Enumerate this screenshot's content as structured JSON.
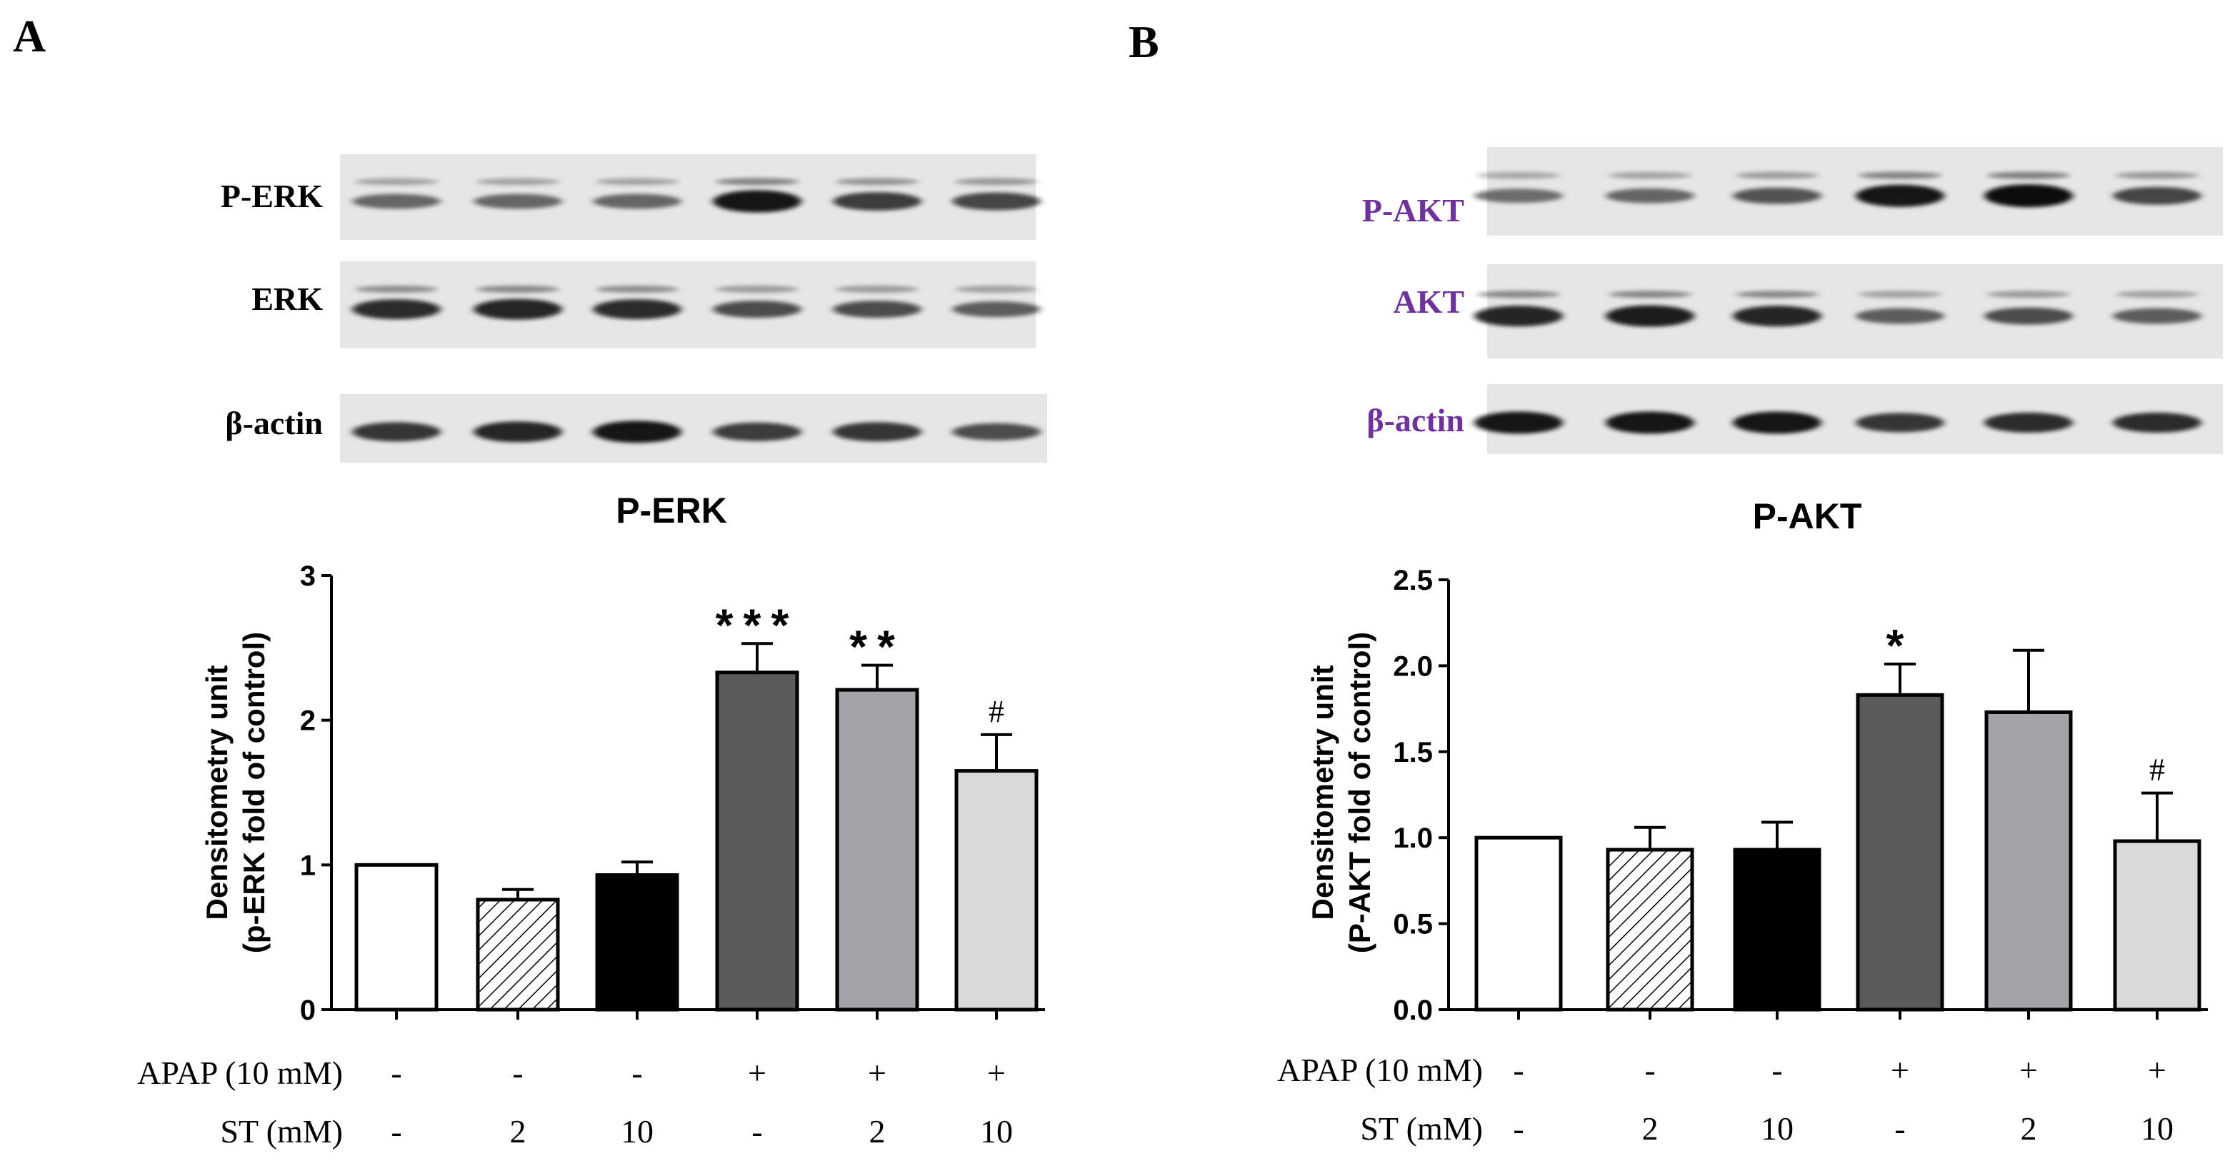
{
  "colors": {
    "label_panel_a": "#000000",
    "label_panel_b": "#7030a0",
    "bar_fills": [
      "#ffffff",
      "#ffffff",
      "#000000",
      "#5a5a5a",
      "#a3a3a8",
      "#d9d9d9"
    ],
    "bar_patterns": [
      "none",
      "hatch",
      "none",
      "none",
      "none",
      "none"
    ]
  },
  "panels": [
    {
      "letter": "A",
      "blot_labels": [
        "P-ERK",
        "ERK",
        "β-actin"
      ],
      "blot_intensity": [
        [
          0.45,
          0.45,
          0.45,
          0.95,
          0.7,
          0.65
        ],
        [
          0.8,
          0.85,
          0.8,
          0.6,
          0.6,
          0.5
        ],
        [
          0.75,
          0.85,
          0.95,
          0.7,
          0.75,
          0.6
        ]
      ],
      "treatment_rows": [
        {
          "label": "APAP (10 mM)",
          "values": [
            "-",
            "-",
            "-",
            "+",
            "+",
            "+"
          ]
        },
        {
          "label": "ST (mM)",
          "values": [
            "-",
            "2",
            "10",
            "-",
            "2",
            "10"
          ]
        }
      ],
      "chart_data": {
        "type": "bar",
        "title": "P-ERK",
        "ylabel_line1": "Densitometry unit",
        "ylabel_line2": "(p-ERK fold of control)",
        "ylim": [
          0,
          3
        ],
        "yticks": [
          "0",
          "1",
          "2",
          "3"
        ],
        "ytick_values": [
          0,
          1,
          2,
          3
        ],
        "values": [
          1.0,
          0.76,
          0.93,
          2.33,
          2.21,
          1.65
        ],
        "errors": [
          0.0,
          0.07,
          0.09,
          0.2,
          0.17,
          0.25
        ],
        "significance": [
          "",
          "",
          "",
          "***",
          "**",
          "#"
        ]
      }
    },
    {
      "letter": "B",
      "blot_labels": [
        "P-AKT",
        "AKT",
        "β-actin"
      ],
      "blot_intensity": [
        [
          0.4,
          0.45,
          0.55,
          0.95,
          1.0,
          0.65
        ],
        [
          0.85,
          0.9,
          0.85,
          0.5,
          0.6,
          0.5
        ],
        [
          0.95,
          0.95,
          0.95,
          0.75,
          0.8,
          0.8
        ]
      ],
      "treatment_rows": [
        {
          "label": "APAP (10 mM)",
          "values": [
            "-",
            "-",
            "-",
            "+",
            "+",
            "+"
          ]
        },
        {
          "label": "ST (mM)",
          "values": [
            "-",
            "2",
            "10",
            "-",
            "2",
            "10"
          ]
        }
      ],
      "chart_data": {
        "type": "bar",
        "title": "P-AKT",
        "ylabel_line1": "Densitometry unit",
        "ylabel_line2": "(P-AKT fold of control)",
        "ylim": [
          0,
          2.5
        ],
        "yticks": [
          "0.0",
          "0.5",
          "1.0",
          "1.5",
          "2.0",
          "2.5"
        ],
        "ytick_values": [
          0,
          0.5,
          1.0,
          1.5,
          2.0,
          2.5
        ],
        "values": [
          1.0,
          0.93,
          0.93,
          1.83,
          1.73,
          0.98
        ],
        "errors": [
          0.0,
          0.13,
          0.16,
          0.18,
          0.36,
          0.28
        ],
        "significance": [
          "",
          "",
          "",
          "*",
          "",
          "#"
        ]
      }
    }
  ]
}
